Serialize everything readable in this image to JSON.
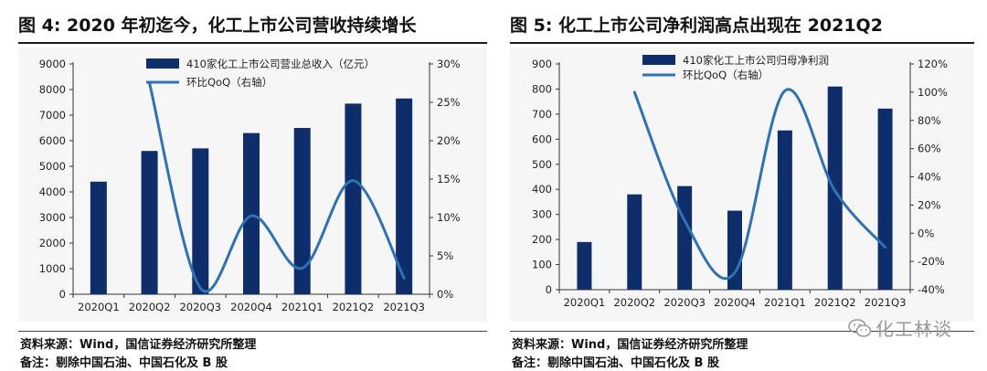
{
  "left_panel": {
    "title": "图 4:  2020 年初迄今，化工上市公司营收持续增长",
    "source": "资料来源：Wind，国信证券经济研究所整理",
    "remark": "备注：剔除中国石油、中国石化及 B 股"
  },
  "right_panel": {
    "title": "图 5:  化工上市公司净利润高点出现在 2021Q2",
    "source": "资料来源：Wind，国信证券经济研究所整理",
    "remark": "备注：剔除中国石油、中国石化及 B 股"
  },
  "watermark": {
    "text": "化工林谈"
  },
  "colors": {
    "bar": "#0d2d6b",
    "line": "#2d73b4"
  },
  "chart_data": [
    {
      "type": "bar",
      "categories": [
        "2020Q1",
        "2020Q2",
        "2020Q3",
        "2020Q4",
        "2021Q1",
        "2021Q2",
        "2021Q3"
      ],
      "series": [
        {
          "name": "410家化工上市公司营业总收入（亿元）",
          "kind": "bar",
          "axis": "left",
          "values": [
            4400,
            5600,
            5700,
            6300,
            6500,
            7450,
            7650
          ]
        },
        {
          "name": "环比QoQ（右轴）",
          "kind": "line",
          "axis": "right",
          "values": [
            null,
            27.5,
            0.8,
            10.2,
            3.4,
            14.8,
            2.1
          ]
        }
      ],
      "ylim": [
        0,
        9000
      ],
      "yticks": [
        0,
        1000,
        2000,
        3000,
        4000,
        5000,
        6000,
        7000,
        8000,
        9000
      ],
      "ytick_labels": [
        "0",
        "1000",
        "2000",
        "3000",
        "4000",
        "5000",
        "6000",
        "7000",
        "8000",
        "9000"
      ],
      "y2lim": [
        0,
        30
      ],
      "y2ticks": [
        0,
        5,
        10,
        15,
        20,
        25,
        30
      ],
      "y2tick_labels": [
        "0%",
        "5%",
        "10%",
        "15%",
        "20%",
        "25%",
        "30%"
      ],
      "legend_position": "top"
    },
    {
      "type": "bar",
      "categories": [
        "2020Q1",
        "2020Q2",
        "2020Q3",
        "2020Q4",
        "2021Q1",
        "2021Q2",
        "2021Q3"
      ],
      "series": [
        {
          "name": "410家化工上市公司归母净利润",
          "kind": "bar",
          "axis": "left",
          "values": [
            190,
            380,
            413,
            315,
            635,
            810,
            722
          ]
        },
        {
          "name": "环比QoQ（右轴）",
          "kind": "line",
          "axis": "right",
          "values": [
            null,
            100,
            9,
            -28,
            101,
            30,
            -10
          ]
        }
      ],
      "ylim": [
        0,
        900
      ],
      "yticks": [
        0,
        100,
        200,
        300,
        400,
        500,
        600,
        700,
        800,
        900
      ],
      "ytick_labels": [
        "0",
        "100",
        "200",
        "300",
        "400",
        "500",
        "600",
        "700",
        "800",
        "900"
      ],
      "y2lim": [
        -40,
        120
      ],
      "y2ticks": [
        -40,
        -20,
        0,
        20,
        40,
        60,
        80,
        100,
        120
      ],
      "y2tick_labels": [
        "-40%",
        "-20%",
        "0%",
        "20%",
        "40%",
        "60%",
        "80%",
        "100%",
        "120%"
      ],
      "legend_position": "top"
    }
  ]
}
